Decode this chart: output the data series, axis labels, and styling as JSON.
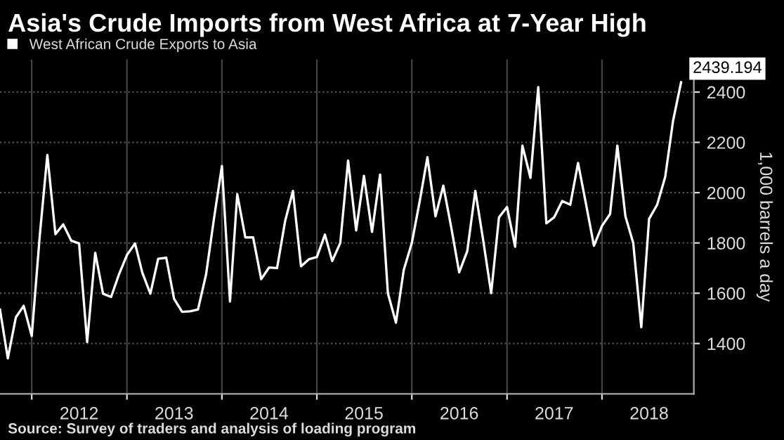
{
  "chart_data": {
    "type": "line",
    "title": "Asia's Crude Imports from West Africa at 7-Year High",
    "x": [
      "2011-09",
      "2011-10",
      "2011-11",
      "2011-12",
      "2012-01",
      "2012-02",
      "2012-03",
      "2012-04",
      "2012-05",
      "2012-06",
      "2012-07",
      "2012-08",
      "2012-09",
      "2012-10",
      "2012-11",
      "2012-12",
      "2013-01",
      "2013-02",
      "2013-03",
      "2013-04",
      "2013-05",
      "2013-06",
      "2013-07",
      "2013-08",
      "2013-09",
      "2013-10",
      "2013-11",
      "2013-12",
      "2014-01",
      "2014-02",
      "2014-03",
      "2014-04",
      "2014-05",
      "2014-06",
      "2014-07",
      "2014-08",
      "2014-09",
      "2014-10",
      "2014-11",
      "2014-12",
      "2015-01",
      "2015-02",
      "2015-03",
      "2015-04",
      "2015-05",
      "2015-06",
      "2015-07",
      "2015-08",
      "2015-09",
      "2015-10",
      "2015-11",
      "2015-12",
      "2016-01",
      "2016-02",
      "2016-03",
      "2016-04",
      "2016-05",
      "2016-06",
      "2016-07",
      "2016-08",
      "2016-09",
      "2016-10",
      "2016-11",
      "2016-12",
      "2017-01",
      "2017-02",
      "2017-03",
      "2017-04",
      "2017-05",
      "2017-06",
      "2017-07",
      "2017-08",
      "2017-09",
      "2017-10",
      "2017-11",
      "2017-12",
      "2018-01",
      "2018-02",
      "2018-03",
      "2018-04",
      "2018-05",
      "2018-06",
      "2018-07",
      "2018-08",
      "2018-09",
      "2018-10",
      "2018-11"
    ],
    "series": [
      {
        "name": "West African Crude Exports to Asia",
        "color": "#ffffff",
        "values": [
          1535,
          1341,
          1504,
          1550,
          1430,
          1831,
          2150,
          1835,
          1874,
          1809,
          1798,
          1406,
          1761,
          1598,
          1585,
          1674,
          1752,
          1798,
          1682,
          1598,
          1737,
          1741,
          1578,
          1526,
          1528,
          1535,
          1674,
          1893,
          2106,
          1567,
          1994,
          1822,
          1822,
          1656,
          1702,
          1700,
          1887,
          2007,
          1707,
          1735,
          1744,
          1833,
          1728,
          1800,
          2128,
          1850,
          2067,
          1844,
          2072,
          1600,
          1483,
          1693,
          1800,
          1970,
          2141,
          1906,
          2028,
          1859,
          1683,
          1767,
          2007,
          1813,
          1600,
          1902,
          1943,
          1785,
          2187,
          2059,
          2420,
          1878,
          1902,
          1967,
          1952,
          2118,
          1952,
          1789,
          1868,
          1915,
          2187,
          1906,
          1800,
          1465,
          1896,
          1952,
          2063,
          2285,
          2439.194
        ]
      }
    ],
    "xlim": [
      "2011-09",
      "2018-12-20"
    ],
    "xticks": [
      {
        "value": "2012-01",
        "label": null
      },
      {
        "value": "2012-07",
        "label": "2012"
      },
      {
        "value": "2013-01",
        "label": null
      },
      {
        "value": "2013-07",
        "label": "2013"
      },
      {
        "value": "2014-01",
        "label": null
      },
      {
        "value": "2014-07",
        "label": "2014"
      },
      {
        "value": "2015-01",
        "label": null
      },
      {
        "value": "2015-07",
        "label": "2015"
      },
      {
        "value": "2016-01",
        "label": null
      },
      {
        "value": "2016-07",
        "label": "2016"
      },
      {
        "value": "2017-01",
        "label": null
      },
      {
        "value": "2017-07",
        "label": "2017"
      },
      {
        "value": "2018-01",
        "label": null
      },
      {
        "value": "2018-07",
        "label": "2018"
      }
    ],
    "ylim": [
      1200,
      2530
    ],
    "yticks": [
      1400,
      1600,
      1800,
      2000,
      2200,
      2400
    ],
    "ylabel": "1,000 barrels a day",
    "grid": true,
    "legend": "top left",
    "annotations": [
      {
        "text": "2439.194",
        "x": "2018-11",
        "y": 2439.194
      },
      "Source: Survey of traders and analysis of loading program"
    ]
  }
}
